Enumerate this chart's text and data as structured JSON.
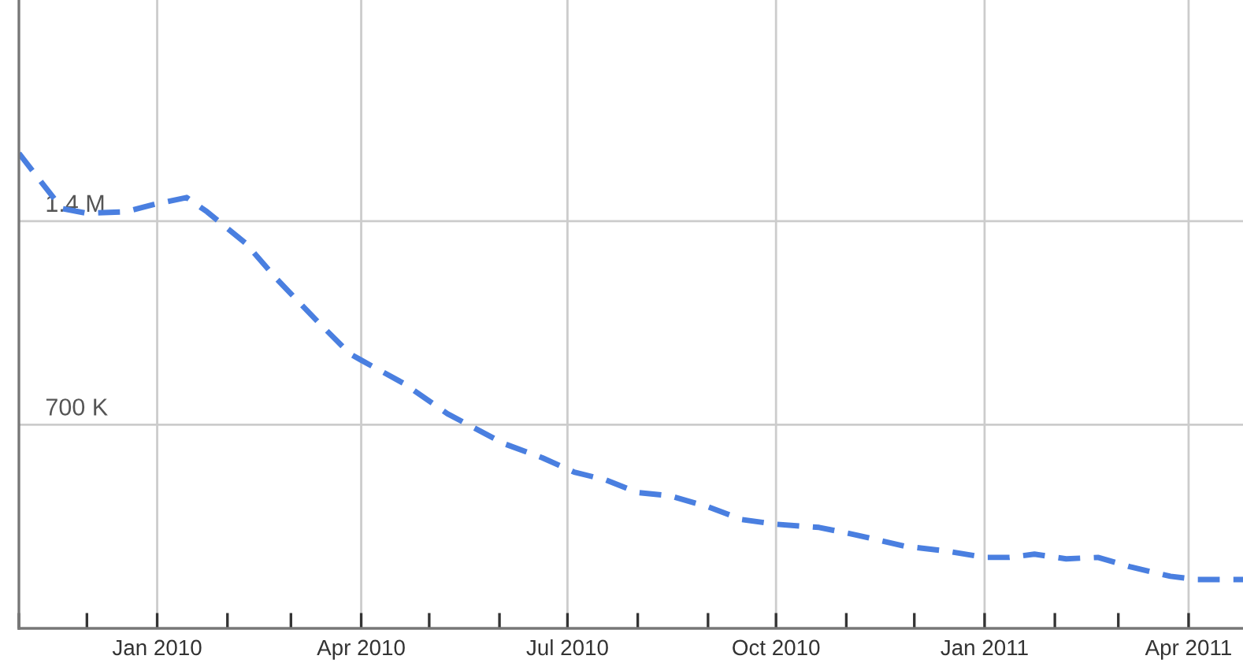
{
  "chart_data": {
    "type": "line",
    "x": [
      "2009-11-01",
      "2009-11-20",
      "2009-12-01",
      "2009-12-18",
      "2010-01-01",
      "2010-01-14",
      "2010-01-23",
      "2010-02-09",
      "2010-02-23",
      "2010-03-13",
      "2010-03-27",
      "2010-04-01",
      "2010-04-20",
      "2010-05-09",
      "2010-06-03",
      "2010-06-20",
      "2010-07-04",
      "2010-07-18",
      "2010-08-01",
      "2010-08-15",
      "2010-09-01",
      "2010-09-16",
      "2010-10-01",
      "2010-10-20",
      "2010-11-06",
      "2010-11-27",
      "2010-12-15",
      "2011-01-01",
      "2011-01-12",
      "2011-01-23",
      "2011-02-06",
      "2011-02-20",
      "2011-03-06",
      "2011-03-24",
      "2011-04-05",
      "2011-04-25"
    ],
    "series": [
      {
        "color": "#4a7fe0",
        "values": [
          1633000,
          1443000,
          1427000,
          1432000,
          1460000,
          1481000,
          1432000,
          1324000,
          1199000,
          1053000,
          944000,
          922000,
          841000,
          738000,
          635000,
          586000,
          537000,
          510000,
          467000,
          456000,
          418000,
          374000,
          358000,
          347000,
          320000,
          282000,
          266000,
          244000,
          244000,
          255000,
          239000,
          244000,
          212000,
          179000,
          168000,
          168000
        ]
      }
    ],
    "line_style": "dashed",
    "marker": "none",
    "grid": true,
    "xlim": [
      "2009-11-01",
      "2011-04-25"
    ],
    "xticks": [
      {
        "value": "2009-11-01",
        "label": null
      },
      {
        "value": "2009-12-01",
        "label": null
      },
      {
        "value": "2010-01-01",
        "label": "Jan 2010"
      },
      {
        "value": "2010-02-01",
        "label": null
      },
      {
        "value": "2010-03-01",
        "label": null
      },
      {
        "value": "2010-04-01",
        "label": "Apr 2010"
      },
      {
        "value": "2010-05-01",
        "label": null
      },
      {
        "value": "2010-06-01",
        "label": null
      },
      {
        "value": "2010-07-01",
        "label": "Jul 2010"
      },
      {
        "value": "2010-08-01",
        "label": null
      },
      {
        "value": "2010-09-01",
        "label": null
      },
      {
        "value": "2010-10-01",
        "label": "Oct 2010"
      },
      {
        "value": "2010-11-01",
        "label": null
      },
      {
        "value": "2010-12-01",
        "label": null
      },
      {
        "value": "2011-01-01",
        "label": "Jan 2011"
      },
      {
        "value": "2011-02-01",
        "label": null
      },
      {
        "value": "2011-03-01",
        "label": null
      },
      {
        "value": "2011-04-01",
        "label": "Apr 2011"
      }
    ],
    "ylim": [
      0,
      2160000
    ],
    "yticks": [
      {
        "value": 700000,
        "label": "700 K"
      },
      {
        "value": 1400000,
        "label": "1.4 M"
      }
    ]
  }
}
